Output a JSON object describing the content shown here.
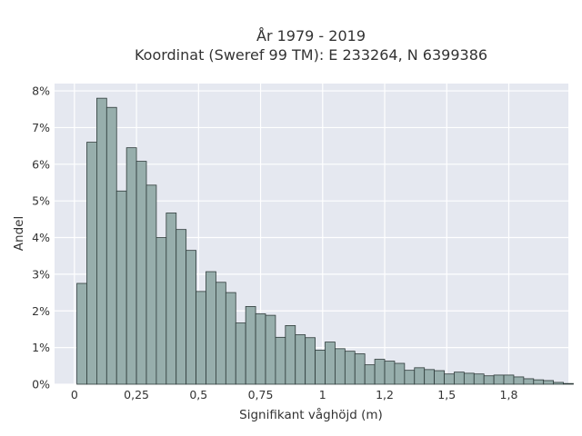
{
  "chart_data": {
    "type": "bar",
    "title_lines": [
      "År 1979 - 2019",
      "Koordinat (Sweref 99 TM): E 233264, N 6399386"
    ],
    "xlabel": "Signifikant våghöjd (m)",
    "ylabel": "Andel",
    "x_ticks": [
      {
        "value": 0,
        "label": "0"
      },
      {
        "value": 0.25,
        "label": "0,25"
      },
      {
        "value": 0.5,
        "label": "0,5"
      },
      {
        "value": 0.75,
        "label": "0,75"
      },
      {
        "value": 1.0,
        "label": "1"
      },
      {
        "value": 1.25,
        "label": "1,2"
      },
      {
        "value": 1.5,
        "label": "1,5"
      },
      {
        "value": 1.75,
        "label": "1,8"
      }
    ],
    "y_ticks": [
      {
        "value": 0,
        "label": "0%"
      },
      {
        "value": 1,
        "label": "1%"
      },
      {
        "value": 2,
        "label": "2%"
      },
      {
        "value": 3,
        "label": "3%"
      },
      {
        "value": 4,
        "label": "4%"
      },
      {
        "value": 5,
        "label": "5%"
      },
      {
        "value": 6,
        "label": "6%"
      },
      {
        "value": 7,
        "label": "7%"
      },
      {
        "value": 8,
        "label": "8%"
      }
    ],
    "xlim": [
      -0.08,
      1.99
    ],
    "ylim": [
      0,
      8.2
    ],
    "bin_start": 0.01,
    "bin_width": 0.04,
    "values": [
      2.75,
      6.6,
      7.8,
      7.55,
      5.27,
      6.45,
      6.08,
      5.43,
      4.0,
      4.67,
      4.22,
      3.65,
      2.53,
      3.07,
      2.78,
      2.5,
      1.67,
      2.12,
      1.92,
      1.88,
      1.28,
      1.6,
      1.35,
      1.27,
      0.93,
      1.15,
      0.97,
      0.9,
      0.83,
      0.53,
      0.68,
      0.63,
      0.57,
      0.38,
      0.45,
      0.4,
      0.37,
      0.28,
      0.33,
      0.3,
      0.28,
      0.23,
      0.25,
      0.25,
      0.2,
      0.15,
      0.12,
      0.1,
      0.05,
      0.02
    ],
    "grid": true,
    "colors": {
      "bar_fill": "#97aeac",
      "bar_edge": "#2e3b3a",
      "plot_bg": "#e5e8f0",
      "grid": "#ffffff"
    }
  }
}
